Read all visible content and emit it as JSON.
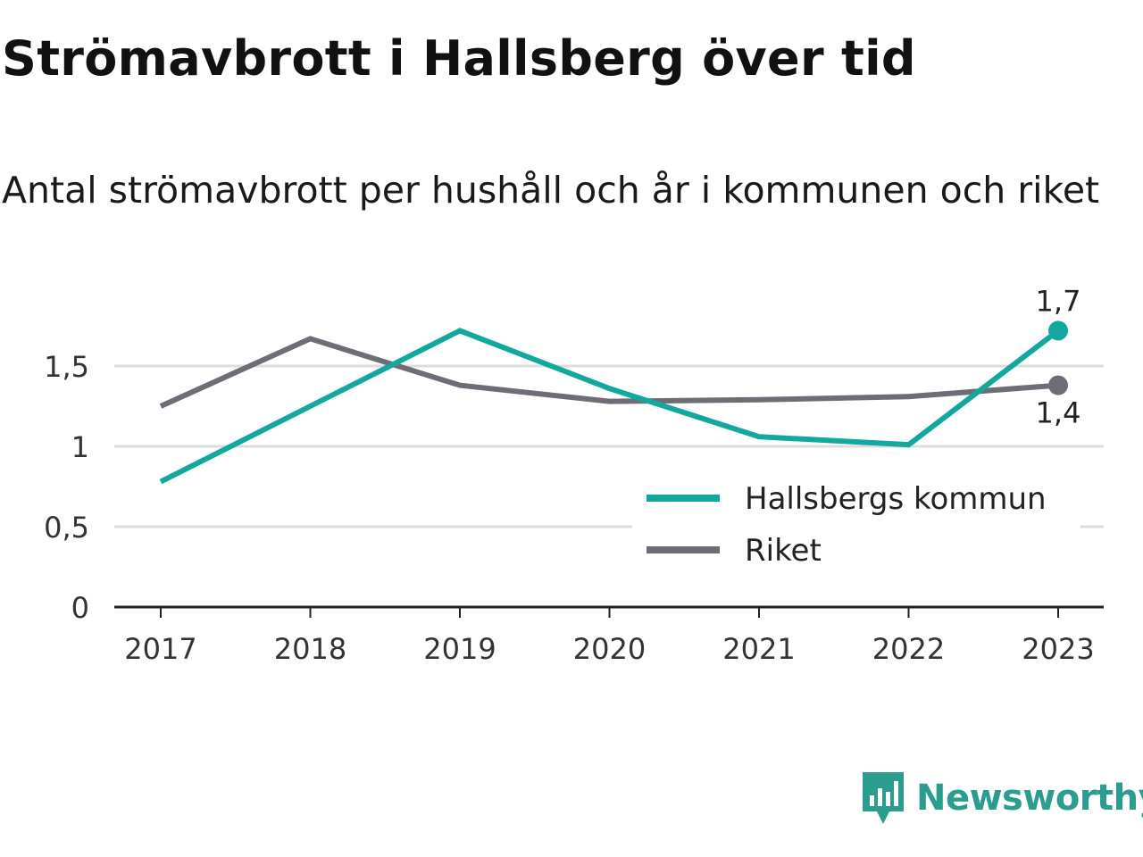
{
  "chart_data": {
    "type": "line",
    "title": "Strömavbrott i Hallsberg över tid",
    "subtitle": "Antal strömavbrott per hushåll och år i kommunen och riket",
    "categories": [
      "2017",
      "2018",
      "2019",
      "2020",
      "2021",
      "2022",
      "2023"
    ],
    "series": [
      {
        "name": "Hallsbergs kommun",
        "color": "#13a89e",
        "values": [
          0.78,
          1.25,
          1.72,
          1.36,
          1.06,
          1.01,
          1.72
        ],
        "end_label": "1,7"
      },
      {
        "name": "Riket",
        "color": "#6e6d76",
        "values": [
          1.25,
          1.67,
          1.38,
          1.28,
          1.29,
          1.31,
          1.38
        ],
        "end_label": "1,4"
      }
    ],
    "ylim": [
      0,
      1.8
    ],
    "yticks": [
      {
        "value": 0,
        "label": "0"
      },
      {
        "value": 0.5,
        "label": "0,5"
      },
      {
        "value": 1,
        "label": "1"
      },
      {
        "value": 1.5,
        "label": "1,5"
      }
    ],
    "xlabel": "",
    "ylabel": "",
    "grid": true,
    "legend_position": "bottom-right"
  },
  "brand": {
    "name": "Newsworthy",
    "icon": "newsworthy-logo-icon",
    "color": "#2a9d8f"
  }
}
